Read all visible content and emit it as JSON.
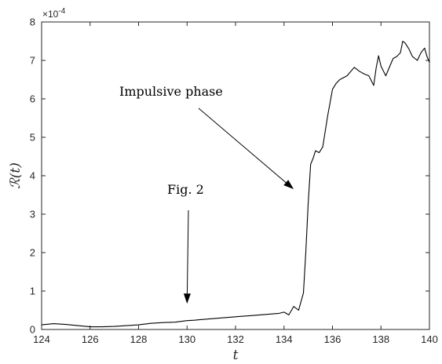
{
  "chart_data": {
    "type": "line",
    "title": "",
    "xlabel": "t",
    "ylabel": "R(t)",
    "ylabel_script": "ℛ",
    "ylabel_rest": "(t)",
    "y_scale_label": "×10",
    "y_scale_exp": "-4",
    "xlim": [
      124,
      140
    ],
    "ylim": [
      0,
      8
    ],
    "grid": false,
    "x_ticks": [
      124,
      126,
      128,
      130,
      132,
      134,
      136,
      138,
      140
    ],
    "y_ticks": [
      0,
      1,
      2,
      3,
      4,
      5,
      6,
      7,
      8
    ],
    "series": [
      {
        "x": [
          124.0,
          124.5,
          125.0,
          125.5,
          126.0,
          126.5,
          127.0,
          127.5,
          128.0,
          128.5,
          129.0,
          129.5,
          130.0,
          130.3,
          130.6,
          131.0,
          131.4,
          131.8,
          132.2,
          132.6,
          133.0,
          133.4,
          133.8,
          134.0,
          134.2,
          134.4,
          134.6,
          134.8,
          134.9,
          135.0,
          135.1,
          135.2,
          135.3,
          135.45,
          135.6,
          135.8,
          136.0,
          136.15,
          136.3,
          136.6,
          136.9,
          137.1,
          137.3,
          137.5,
          137.7,
          137.8,
          137.9,
          138.0,
          138.2,
          138.4,
          138.5,
          138.65,
          138.8,
          138.9,
          139.0,
          139.15,
          139.3,
          139.5,
          139.65,
          139.8,
          139.9,
          140.0
        ],
        "y": [
          0.12,
          0.15,
          0.13,
          0.1,
          0.07,
          0.07,
          0.08,
          0.1,
          0.12,
          0.16,
          0.18,
          0.19,
          0.23,
          0.24,
          0.26,
          0.28,
          0.3,
          0.32,
          0.34,
          0.36,
          0.38,
          0.4,
          0.42,
          0.45,
          0.38,
          0.6,
          0.5,
          0.95,
          2.0,
          3.3,
          4.3,
          4.45,
          4.65,
          4.6,
          4.75,
          5.55,
          6.25,
          6.4,
          6.5,
          6.6,
          6.82,
          6.72,
          6.65,
          6.6,
          6.35,
          6.8,
          7.12,
          6.85,
          6.6,
          6.9,
          7.05,
          7.1,
          7.2,
          7.5,
          7.45,
          7.3,
          7.1,
          7.0,
          7.2,
          7.32,
          7.1,
          6.95
        ]
      }
    ],
    "annotations": [
      {
        "text": "Impulsive phase",
        "points_to": [
          134.4,
          3.65
        ]
      },
      {
        "text": "Fig. 2",
        "points_to": [
          130.0,
          0.67
        ]
      }
    ]
  }
}
